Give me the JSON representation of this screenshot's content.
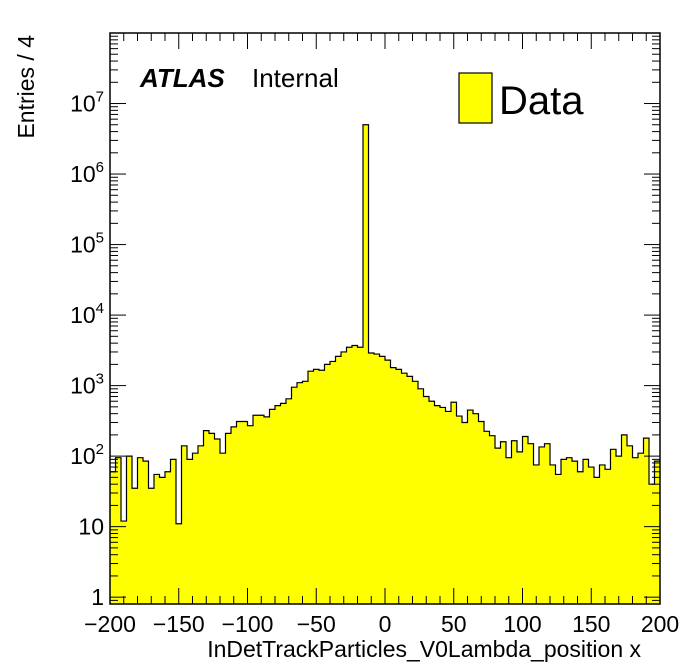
{
  "chart_data": {
    "type": "bar",
    "histogram": true,
    "xlabel": "InDetTrackParticles_V0Lambda_position x",
    "ylabel": "Entries / 4",
    "xlim": [
      -200,
      200
    ],
    "ylim": [
      0.8,
      100000000
    ],
    "yscale": "log",
    "bin_width": 4,
    "x_tick_labels": [
      "−200",
      "−150",
      "−100",
      "−50",
      "0",
      "50",
      "100",
      "150",
      "200"
    ],
    "x_tick_values": [
      -200,
      -150,
      -100,
      -50,
      0,
      50,
      100,
      150,
      200
    ],
    "y_ticks": [
      {
        "value": 1,
        "base": "1",
        "exp": ""
      },
      {
        "value": 10,
        "base": "10",
        "exp": ""
      },
      {
        "value": 100,
        "base": "10",
        "exp": "2"
      },
      {
        "value": 1000,
        "base": "10",
        "exp": "3"
      },
      {
        "value": 10000,
        "base": "10",
        "exp": "4"
      },
      {
        "value": 100000,
        "base": "10",
        "exp": "5"
      },
      {
        "value": 1000000,
        "base": "10",
        "exp": "6"
      },
      {
        "value": 10000000,
        "base": "10",
        "exp": "7"
      }
    ],
    "annotation": {
      "bold": "ATLAS",
      "text": "Internal"
    },
    "legend": {
      "label": "Data",
      "position": "top-right"
    },
    "colors": {
      "fill": "#ffff00",
      "line": "#000000"
    },
    "series": [
      {
        "name": "Data",
        "values": [
          60,
          95,
          12,
          100,
          35,
          95,
          85,
          35,
          55,
          50,
          60,
          90,
          11,
          140,
          90,
          110,
          140,
          230,
          210,
          175,
          110,
          210,
          260,
          310,
          310,
          270,
          380,
          380,
          360,
          460,
          520,
          560,
          650,
          950,
          1100,
          1150,
          1600,
          1700,
          1650,
          2000,
          2200,
          2600,
          3000,
          3500,
          3700,
          3500,
          5000000,
          2900,
          2800,
          2600,
          2300,
          1800,
          1700,
          1500,
          1350,
          1150,
          900,
          700,
          600,
          520,
          490,
          430,
          580,
          370,
          300,
          450,
          400,
          310,
          225,
          195,
          130,
          160,
          95,
          165,
          115,
          190,
          150,
          75,
          135,
          150,
          75,
          55,
          90,
          95,
          85,
          60,
          90,
          70,
          50,
          75,
          65,
          125,
          100,
          200,
          140,
          95,
          110,
          180,
          40,
          85
        ]
      }
    ]
  }
}
